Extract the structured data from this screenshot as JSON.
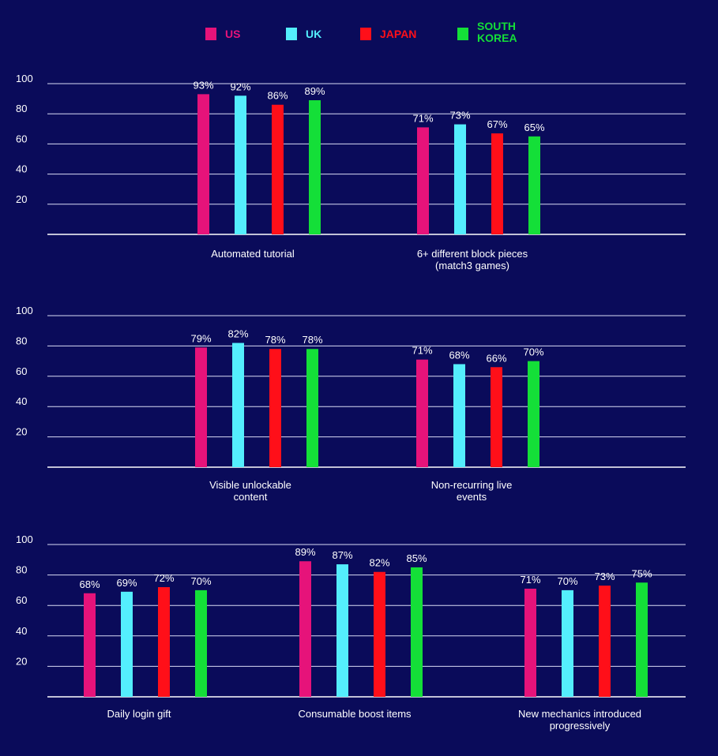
{
  "legend": [
    {
      "label": "US",
      "color": "#e6137a"
    },
    {
      "label": "UK",
      "color": "#54eefd"
    },
    {
      "label": "JAPAN",
      "color": "#ff0f19"
    },
    {
      "label": "SOUTH\nKOREA",
      "color": "#14df38"
    }
  ],
  "chart_data": [
    {
      "type": "bar",
      "ylim": [
        0,
        100
      ],
      "yticks": [
        20,
        40,
        60,
        80,
        100
      ],
      "grid": true,
      "legend_position": "top-center",
      "categories": [
        "Automated tutorial",
        "6+ different block pieces\n(match3 games)"
      ],
      "series": [
        {
          "name": "US",
          "values": [
            93,
            71
          ],
          "labels": [
            "93%",
            "71%"
          ]
        },
        {
          "name": "UK",
          "values": [
            92,
            73
          ],
          "labels": [
            "92%",
            "73%"
          ]
        },
        {
          "name": "JAPAN",
          "values": [
            86,
            67
          ],
          "labels": [
            "86%",
            "67%"
          ]
        },
        {
          "name": "SOUTH KOREA",
          "values": [
            89,
            65
          ],
          "labels": [
            "89%",
            "65%"
          ]
        }
      ]
    },
    {
      "type": "bar",
      "ylim": [
        0,
        100
      ],
      "yticks": [
        20,
        40,
        60,
        80,
        100
      ],
      "grid": true,
      "categories": [
        "Visible unlockable\ncontent",
        "Non-recurring live\nevents"
      ],
      "series": [
        {
          "name": "US",
          "values": [
            79,
            71
          ],
          "labels": [
            "79%",
            "71%"
          ]
        },
        {
          "name": "UK",
          "values": [
            82,
            68
          ],
          "labels": [
            "82%",
            "68%"
          ]
        },
        {
          "name": "JAPAN",
          "values": [
            78,
            66
          ],
          "labels": [
            "78%",
            "66%"
          ]
        },
        {
          "name": "SOUTH KOREA",
          "values": [
            78,
            70
          ],
          "labels": [
            "78%",
            "70%"
          ]
        }
      ]
    },
    {
      "type": "bar",
      "ylim": [
        0,
        100
      ],
      "yticks": [
        20,
        40,
        60,
        80,
        100
      ],
      "grid": true,
      "categories": [
        "Daily login gift",
        "Consumable boost items",
        "New mechanics introduced\nprogressively"
      ],
      "series": [
        {
          "name": "US",
          "values": [
            68,
            89,
            71
          ],
          "labels": [
            "68%",
            "89%",
            "71%"
          ]
        },
        {
          "name": "UK",
          "values": [
            69,
            87,
            70
          ],
          "labels": [
            "69%",
            "87%",
            "70%"
          ]
        },
        {
          "name": "JAPAN",
          "values": [
            72,
            82,
            73
          ],
          "labels": [
            "72%",
            "82%",
            "73%"
          ]
        },
        {
          "name": "SOUTH KOREA",
          "values": [
            70,
            85,
            75
          ],
          "labels": [
            "70%",
            "85%",
            "75%"
          ]
        }
      ]
    }
  ]
}
